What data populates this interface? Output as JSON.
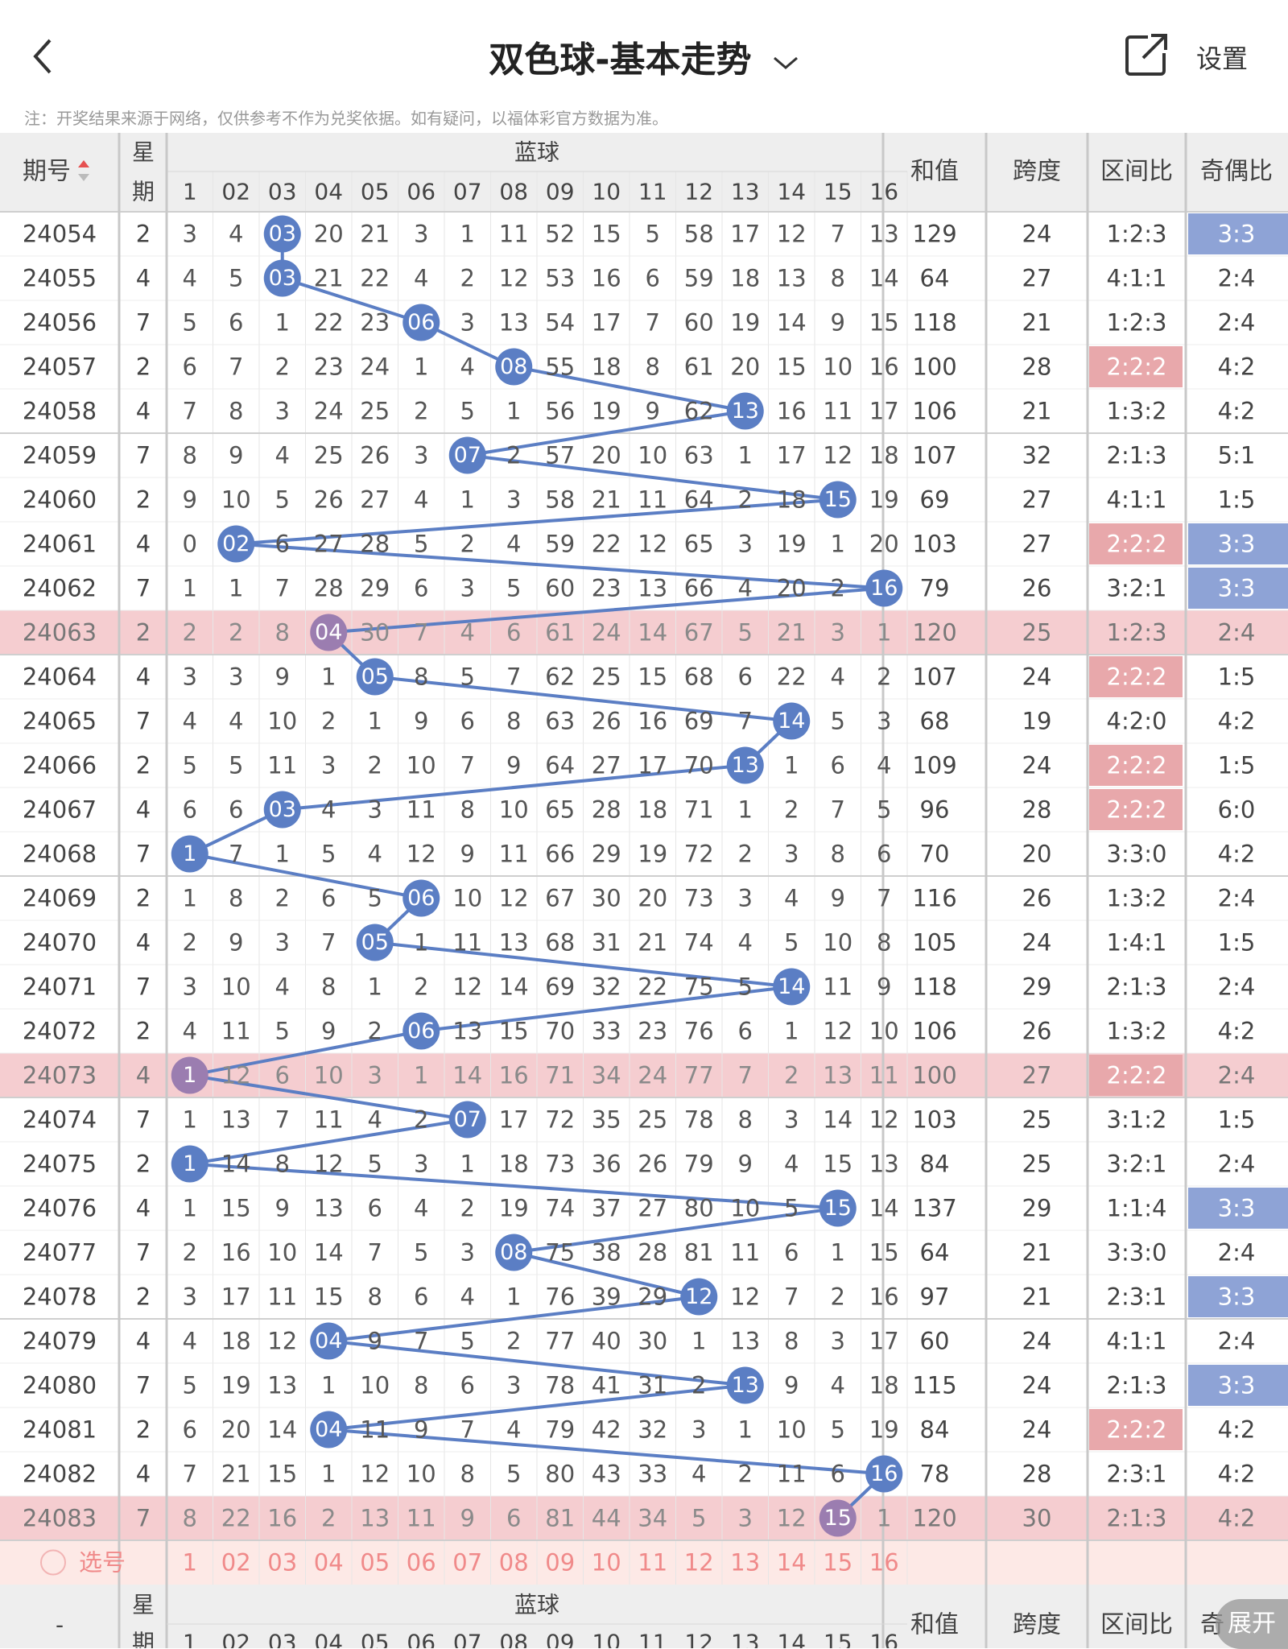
{
  "header": {
    "back_icon": "chevron-left-icon",
    "title": "双色球-基本走势",
    "title_icon": "chevron-down-icon",
    "share_icon": "share-icon",
    "settings_label": "设置"
  },
  "notice": "注：开奖结果来源于网络，仅供参考不作为兑奖依据。如有疑问，以福体彩官方数据为准。",
  "table": {
    "col_period": "期号",
    "sort_icon": "sort-icon",
    "col_week_1": "星",
    "col_week_2": "期",
    "col_blue": "蓝球",
    "blue_numbers": [
      "1",
      "02",
      "03",
      "04",
      "05",
      "06",
      "07",
      "08",
      "09",
      "10",
      "11",
      "12",
      "13",
      "14",
      "15",
      "16"
    ],
    "col_sum": "和值",
    "col_span": "跨度",
    "col_zone": "区间比",
    "col_oddeven": "奇偶比",
    "rows": [
      {
        "period": "24054",
        "week": "2",
        "cells": [
          "3",
          "4",
          "03",
          "20",
          "21",
          "3",
          "1",
          "11",
          "52",
          "15",
          "5",
          "58",
          "17",
          "12",
          "7",
          "13"
        ],
        "sum": "129",
        "span": "24",
        "zone": "1:2:3",
        "oe": "3:3"
      },
      {
        "period": "24055",
        "week": "4",
        "cells": [
          "4",
          "5",
          "03",
          "21",
          "22",
          "4",
          "2",
          "12",
          "53",
          "16",
          "6",
          "59",
          "18",
          "13",
          "8",
          "14"
        ],
        "sum": "64",
        "span": "27",
        "zone": "4:1:1",
        "oe": "2:4"
      },
      {
        "period": "24056",
        "week": "7",
        "cells": [
          "5",
          "6",
          "1",
          "22",
          "23",
          "06",
          "3",
          "13",
          "54",
          "17",
          "7",
          "60",
          "19",
          "14",
          "9",
          "15"
        ],
        "sum": "118",
        "span": "21",
        "zone": "1:2:3",
        "oe": "2:4"
      },
      {
        "period": "24057",
        "week": "2",
        "cells": [
          "6",
          "7",
          "2",
          "23",
          "24",
          "1",
          "4",
          "08",
          "55",
          "18",
          "8",
          "61",
          "20",
          "15",
          "10",
          "16"
        ],
        "sum": "100",
        "span": "28",
        "zone": "2:2:2",
        "oe": "4:2"
      },
      {
        "period": "24058",
        "week": "4",
        "cells": [
          "7",
          "8",
          "3",
          "24",
          "25",
          "2",
          "5",
          "1",
          "56",
          "19",
          "9",
          "62",
          "13",
          "16",
          "11",
          "17"
        ],
        "sum": "106",
        "span": "21",
        "zone": "1:3:2",
        "oe": "4:2"
      },
      {
        "period": "24059",
        "week": "7",
        "cells": [
          "8",
          "9",
          "4",
          "25",
          "26",
          "3",
          "07",
          "2",
          "57",
          "20",
          "10",
          "63",
          "1",
          "17",
          "12",
          "18"
        ],
        "sum": "107",
        "span": "32",
        "zone": "2:1:3",
        "oe": "5:1"
      },
      {
        "period": "24060",
        "week": "2",
        "cells": [
          "9",
          "10",
          "5",
          "26",
          "27",
          "4",
          "1",
          "3",
          "58",
          "21",
          "11",
          "64",
          "2",
          "18",
          "15",
          "19"
        ],
        "sum": "69",
        "span": "27",
        "zone": "4:1:1",
        "oe": "1:5"
      },
      {
        "period": "24061",
        "week": "4",
        "cells": [
          "0",
          "02",
          "6",
          "27",
          "28",
          "5",
          "2",
          "4",
          "59",
          "22",
          "12",
          "65",
          "3",
          "19",
          "1",
          "20"
        ],
        "sum": "103",
        "span": "27",
        "zone": "2:2:2",
        "oe": "3:3"
      },
      {
        "period": "24062",
        "week": "7",
        "cells": [
          "1",
          "1",
          "7",
          "28",
          "29",
          "6",
          "3",
          "5",
          "60",
          "23",
          "13",
          "66",
          "4",
          "20",
          "2",
          "16"
        ],
        "sum": "79",
        "span": "26",
        "zone": "3:2:1",
        "oe": "3:3"
      },
      {
        "period": "24063",
        "week": "2",
        "cells": [
          "2",
          "2",
          "8",
          "04",
          "30",
          "7",
          "4",
          "6",
          "61",
          "24",
          "14",
          "67",
          "5",
          "21",
          "3",
          "1"
        ],
        "sum": "120",
        "span": "25",
        "zone": "1:2:3",
        "oe": "2:4"
      },
      {
        "period": "24064",
        "week": "4",
        "cells": [
          "3",
          "3",
          "9",
          "1",
          "05",
          "8",
          "5",
          "7",
          "62",
          "25",
          "15",
          "68",
          "6",
          "22",
          "4",
          "2"
        ],
        "sum": "107",
        "span": "24",
        "zone": "2:2:2",
        "oe": "1:5"
      },
      {
        "period": "24065",
        "week": "7",
        "cells": [
          "4",
          "4",
          "10",
          "2",
          "1",
          "9",
          "6",
          "8",
          "63",
          "26",
          "16",
          "69",
          "7",
          "14",
          "5",
          "3"
        ],
        "sum": "68",
        "span": "19",
        "zone": "4:2:0",
        "oe": "4:2"
      },
      {
        "period": "24066",
        "week": "2",
        "cells": [
          "5",
          "5",
          "11",
          "3",
          "2",
          "10",
          "7",
          "9",
          "64",
          "27",
          "17",
          "70",
          "13",
          "1",
          "6",
          "4"
        ],
        "sum": "109",
        "span": "24",
        "zone": "2:2:2",
        "oe": "1:5"
      },
      {
        "period": "24067",
        "week": "4",
        "cells": [
          "6",
          "6",
          "03",
          "4",
          "3",
          "11",
          "8",
          "10",
          "65",
          "28",
          "18",
          "71",
          "1",
          "2",
          "7",
          "5"
        ],
        "sum": "96",
        "span": "28",
        "zone": "2:2:2",
        "oe": "6:0"
      },
      {
        "period": "24068",
        "week": "7",
        "cells": [
          "1",
          "7",
          "1",
          "5",
          "4",
          "12",
          "9",
          "11",
          "66",
          "29",
          "19",
          "72",
          "2",
          "3",
          "8",
          "6"
        ],
        "sum": "70",
        "span": "20",
        "zone": "3:3:0",
        "oe": "4:2"
      },
      {
        "period": "24069",
        "week": "2",
        "cells": [
          "1",
          "8",
          "2",
          "6",
          "5",
          "06",
          "10",
          "12",
          "67",
          "30",
          "20",
          "73",
          "3",
          "4",
          "9",
          "7"
        ],
        "sum": "116",
        "span": "26",
        "zone": "1:3:2",
        "oe": "2:4"
      },
      {
        "period": "24070",
        "week": "4",
        "cells": [
          "2",
          "9",
          "3",
          "7",
          "05",
          "1",
          "11",
          "13",
          "68",
          "31",
          "21",
          "74",
          "4",
          "5",
          "10",
          "8"
        ],
        "sum": "105",
        "span": "24",
        "zone": "1:4:1",
        "oe": "1:5"
      },
      {
        "period": "24071",
        "week": "7",
        "cells": [
          "3",
          "10",
          "4",
          "8",
          "1",
          "2",
          "12",
          "14",
          "69",
          "32",
          "22",
          "75",
          "5",
          "14",
          "11",
          "9"
        ],
        "sum": "118",
        "span": "29",
        "zone": "2:1:3",
        "oe": "2:4"
      },
      {
        "period": "24072",
        "week": "2",
        "cells": [
          "4",
          "11",
          "5",
          "9",
          "2",
          "06",
          "13",
          "15",
          "70",
          "33",
          "23",
          "76",
          "6",
          "1",
          "12",
          "10"
        ],
        "sum": "106",
        "span": "26",
        "zone": "1:3:2",
        "oe": "4:2"
      },
      {
        "period": "24073",
        "week": "4",
        "cells": [
          "1",
          "12",
          "6",
          "10",
          "3",
          "1",
          "14",
          "16",
          "71",
          "34",
          "24",
          "77",
          "7",
          "2",
          "13",
          "11"
        ],
        "sum": "100",
        "span": "27",
        "zone": "2:2:2",
        "oe": "2:4"
      },
      {
        "period": "24074",
        "week": "7",
        "cells": [
          "1",
          "13",
          "7",
          "11",
          "4",
          "2",
          "07",
          "17",
          "72",
          "35",
          "25",
          "78",
          "8",
          "3",
          "14",
          "12"
        ],
        "sum": "103",
        "span": "25",
        "zone": "3:1:2",
        "oe": "1:5"
      },
      {
        "period": "24075",
        "week": "2",
        "cells": [
          "1",
          "14",
          "8",
          "12",
          "5",
          "3",
          "1",
          "18",
          "73",
          "36",
          "26",
          "79",
          "9",
          "4",
          "15",
          "13"
        ],
        "sum": "84",
        "span": "25",
        "zone": "3:2:1",
        "oe": "2:4"
      },
      {
        "period": "24076",
        "week": "4",
        "cells": [
          "1",
          "15",
          "9",
          "13",
          "6",
          "4",
          "2",
          "19",
          "74",
          "37",
          "27",
          "80",
          "10",
          "5",
          "15",
          "14"
        ],
        "sum": "137",
        "span": "29",
        "zone": "1:1:4",
        "oe": "3:3"
      },
      {
        "period": "24077",
        "week": "7",
        "cells": [
          "2",
          "16",
          "10",
          "14",
          "7",
          "5",
          "3",
          "08",
          "75",
          "38",
          "28",
          "81",
          "11",
          "6",
          "1",
          "15"
        ],
        "sum": "64",
        "span": "21",
        "zone": "3:3:0",
        "oe": "2:4"
      },
      {
        "period": "24078",
        "week": "2",
        "cells": [
          "3",
          "17",
          "11",
          "15",
          "8",
          "6",
          "4",
          "1",
          "76",
          "39",
          "29",
          "12",
          "12",
          "7",
          "2",
          "16"
        ],
        "sum": "97",
        "span": "21",
        "zone": "2:3:1",
        "oe": "3:3"
      },
      {
        "period": "24079",
        "week": "4",
        "cells": [
          "4",
          "18",
          "12",
          "04",
          "9",
          "7",
          "5",
          "2",
          "77",
          "40",
          "30",
          "1",
          "13",
          "8",
          "3",
          "17"
        ],
        "sum": "60",
        "span": "24",
        "zone": "4:1:1",
        "oe": "2:4"
      },
      {
        "period": "24080",
        "week": "7",
        "cells": [
          "5",
          "19",
          "13",
          "1",
          "10",
          "8",
          "6",
          "3",
          "78",
          "41",
          "31",
          "2",
          "13",
          "9",
          "4",
          "18"
        ],
        "sum": "115",
        "span": "24",
        "zone": "2:1:3",
        "oe": "3:3"
      },
      {
        "period": "24081",
        "week": "2",
        "cells": [
          "6",
          "20",
          "14",
          "04",
          "11",
          "9",
          "7",
          "4",
          "79",
          "42",
          "32",
          "3",
          "1",
          "10",
          "5",
          "19"
        ],
        "sum": "84",
        "span": "24",
        "zone": "2:2:2",
        "oe": "4:2"
      },
      {
        "period": "24082",
        "week": "4",
        "cells": [
          "7",
          "21",
          "15",
          "1",
          "12",
          "10",
          "8",
          "5",
          "80",
          "43",
          "33",
          "4",
          "2",
          "11",
          "6",
          "16"
        ],
        "sum": "78",
        "span": "28",
        "zone": "2:3:1",
        "oe": "4:2"
      },
      {
        "period": "24083",
        "week": "7",
        "cells": [
          "8",
          "22",
          "16",
          "2",
          "13",
          "11",
          "9",
          "6",
          "81",
          "44",
          "34",
          "5",
          "3",
          "12",
          "15",
          "1"
        ],
        "sum": "120",
        "span": "30",
        "zone": "2:1:3",
        "oe": "4:2"
      }
    ],
    "hits": [
      3,
      3,
      6,
      8,
      13,
      7,
      15,
      2,
      16,
      4,
      5,
      14,
      13,
      3,
      1,
      6,
      5,
      14,
      6,
      1,
      7,
      1,
      15,
      8,
      12,
      4,
      13,
      4,
      16,
      15
    ],
    "highlight_rows": [
      9,
      19,
      29
    ],
    "zone_highlight_rows": [
      3,
      7,
      10,
      12,
      13,
      19,
      27
    ],
    "oe_highlight_rows": [
      0,
      7,
      8,
      22,
      24,
      26
    ],
    "select_label": "选号",
    "footer_period": "-",
    "footer_sum": "和值",
    "footer_span": "跨度",
    "footer_zone": "区间比",
    "footer_oddeven_partial": "奇"
  },
  "expand_label": "展开",
  "colors": {
    "ball_blue": "#5b7ec4",
    "ball_purple": "#9b7db0",
    "row_pink": "#f5cdd0",
    "zone_pink": "#e8a8ab",
    "oe_blue": "#8ea3d6",
    "header_bg": "#eeeeee",
    "select_row_bg": "#fde9e6",
    "select_text": "#f08a8a"
  }
}
